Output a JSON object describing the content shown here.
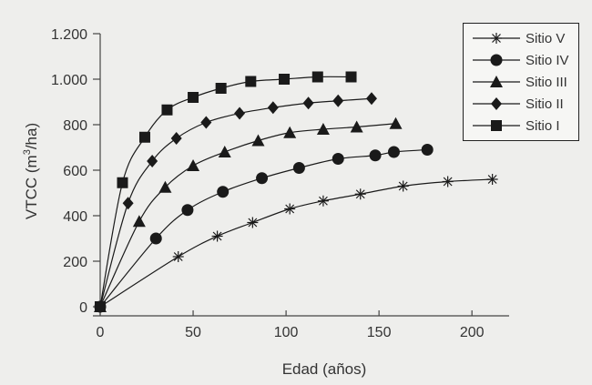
{
  "chart_data": {
    "type": "line",
    "xlabel": "Edad (años)",
    "ylabel_main": "VTCC (m",
    "ylabel_sup": "3",
    "ylabel_end": "/ha)",
    "xlim": [
      0,
      220
    ],
    "ylim": [
      0,
      1200
    ],
    "x_ticks": [
      0,
      50,
      100,
      150,
      200
    ],
    "x_tick_labels": [
      "0",
      "50",
      "100",
      "150",
      "200"
    ],
    "y_ticks": [
      0,
      200,
      400,
      600,
      800,
      1000,
      1200
    ],
    "y_tick_labels": [
      "0",
      "200",
      "400",
      "600",
      "800",
      "1.000",
      "1.200"
    ],
    "grid": false,
    "legend_position": "top-right",
    "series": [
      {
        "name": "Sitio V",
        "marker": "asterisk",
        "x": [
          0,
          42,
          63,
          82,
          102,
          120,
          140,
          163,
          187,
          211
        ],
        "y": [
          0,
          220,
          310,
          370,
          430,
          465,
          495,
          530,
          550,
          560
        ]
      },
      {
        "name": "Sitio IV",
        "marker": "circle",
        "x": [
          0,
          30,
          47,
          66,
          87,
          107,
          128,
          148,
          158,
          176
        ],
        "y": [
          0,
          300,
          425,
          505,
          565,
          610,
          650,
          665,
          680,
          690
        ]
      },
      {
        "name": "Sitio III",
        "marker": "triangle",
        "x": [
          0,
          21,
          35,
          50,
          67,
          85,
          102,
          120,
          138,
          159
        ],
        "y": [
          0,
          375,
          525,
          620,
          680,
          730,
          765,
          780,
          790,
          805
        ]
      },
      {
        "name": "Sitio II",
        "marker": "diamond",
        "x": [
          0,
          15,
          28,
          41,
          57,
          75,
          93,
          112,
          128,
          146
        ],
        "y": [
          0,
          455,
          640,
          740,
          810,
          850,
          875,
          895,
          905,
          915
        ]
      },
      {
        "name": "Sitio I",
        "marker": "square",
        "x": [
          0,
          12,
          24,
          36,
          50,
          65,
          81,
          99,
          117,
          135
        ],
        "y": [
          0,
          545,
          745,
          865,
          920,
          960,
          990,
          1000,
          1010,
          1010
        ]
      }
    ]
  }
}
